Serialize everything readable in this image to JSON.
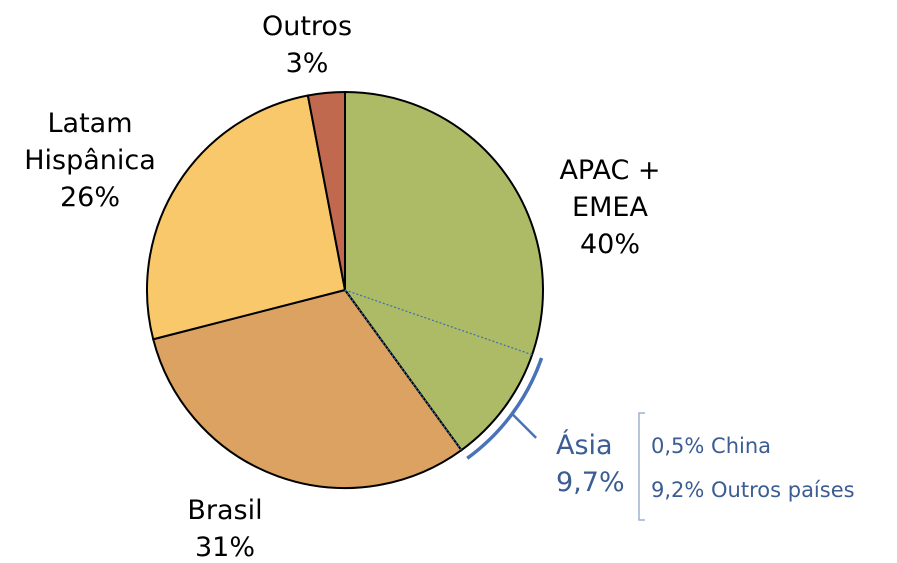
{
  "chart_data": {
    "type": "pie",
    "categories": [
      "APAC +\nEMEA",
      "Brasil",
      "Latam\nHispânica",
      "Outros"
    ],
    "values": [
      40,
      31,
      26,
      3
    ],
    "value_labels": [
      "40%",
      "31%",
      "26%",
      "3%"
    ],
    "colors": [
      "#adbb67",
      "#dba261",
      "#f9c86a",
      "#c0694f"
    ],
    "annotation": {
      "text": "Ásia",
      "value": 9.7,
      "value_label": "9,7%",
      "breakdown": [
        {
          "value": 0.5,
          "label": "0,5% China"
        },
        {
          "value": 9.2,
          "label": "9,2% Outros países"
        }
      ]
    }
  }
}
